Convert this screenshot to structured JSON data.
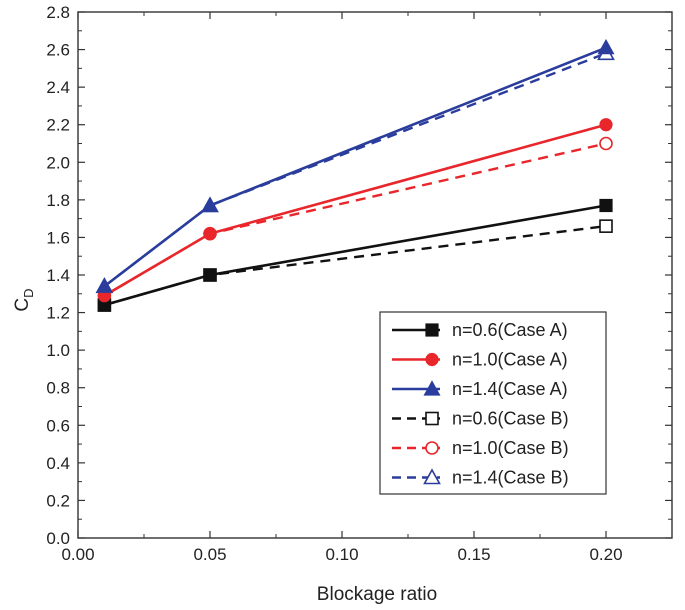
{
  "chart_data": {
    "type": "line",
    "title": "",
    "xlabel": "Blockage ratio",
    "ylabel": "C",
    "ylabel_subscript": "D",
    "xlim": [
      0.0,
      0.225
    ],
    "ylim": [
      0.0,
      2.8
    ],
    "x_ticks": [
      0.0,
      0.05,
      0.1,
      0.15,
      0.2
    ],
    "x_tick_labels": [
      "0.00",
      "0.05",
      "0.10",
      "0.15",
      "0.20"
    ],
    "y_ticks": [
      0.0,
      0.2,
      0.4,
      0.6,
      0.8,
      1.0,
      1.2,
      1.4,
      1.6,
      1.8,
      2.0,
      2.2,
      2.4,
      2.6,
      2.8
    ],
    "y_tick_labels": [
      "0.0",
      "0.2",
      "0.4",
      "0.6",
      "0.8",
      "1.0",
      "1.2",
      "1.4",
      "1.6",
      "1.8",
      "2.0",
      "2.2",
      "2.4",
      "2.6",
      "2.8"
    ],
    "grid": false,
    "legend_position": "bottom-right",
    "x": [
      0.01,
      0.05,
      0.2
    ],
    "series": [
      {
        "name": "n=0.6(Case A)",
        "values": [
          1.24,
          1.4,
          1.77
        ],
        "color": "#111111",
        "dash": "solid",
        "marker": "square",
        "filled": true
      },
      {
        "name": "n=1.0(Case A)",
        "values": [
          1.29,
          1.62,
          2.2
        ],
        "color": "#e8262b",
        "dash": "solid",
        "marker": "circle",
        "filled": true
      },
      {
        "name": "n=1.4(Case A)",
        "values": [
          1.34,
          1.77,
          2.61
        ],
        "color": "#2b3d9c",
        "dash": "solid",
        "marker": "triangle",
        "filled": true
      },
      {
        "name": "n=0.6(Case B)",
        "values": [
          1.24,
          1.4,
          1.66
        ],
        "color": "#111111",
        "dash": "dashed",
        "marker": "square",
        "filled": false
      },
      {
        "name": "n=1.0(Case B)",
        "values": [
          1.29,
          1.62,
          2.1
        ],
        "color": "#e8262b",
        "dash": "dashed",
        "marker": "circle",
        "filled": false
      },
      {
        "name": "n=1.4(Case B)",
        "values": [
          1.34,
          1.77,
          2.58
        ],
        "color": "#2b3d9c",
        "dash": "dashed",
        "marker": "triangle",
        "filled": false
      }
    ]
  }
}
